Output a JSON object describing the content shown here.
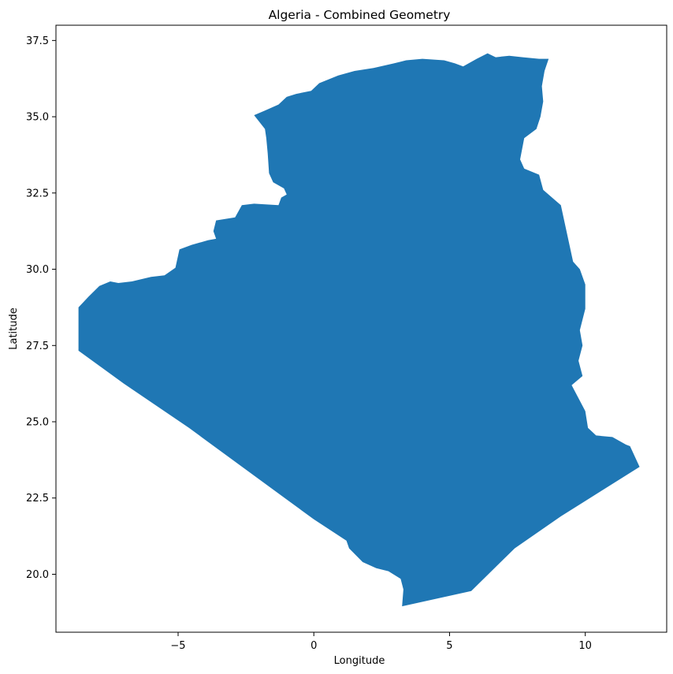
{
  "title": "Algeria - Combined Geometry",
  "chart_data": {
    "type": "map",
    "title": "Algeria - Combined Geometry",
    "xlabel": "Longitude",
    "ylabel": "Latitude",
    "xlim": [
      -9.5,
      13.0
    ],
    "ylim": [
      18.1,
      38.0
    ],
    "x_ticks": [
      {
        "value": -5,
        "label": "−5"
      },
      {
        "value": 0,
        "label": "0"
      },
      {
        "value": 5,
        "label": "5"
      },
      {
        "value": 10,
        "label": "10"
      }
    ],
    "y_ticks": [
      {
        "value": 20.0,
        "label": "20.0"
      },
      {
        "value": 22.5,
        "label": "22.5"
      },
      {
        "value": 25.0,
        "label": "25.0"
      },
      {
        "value": 27.5,
        "label": "27.5"
      },
      {
        "value": 30.0,
        "label": "30.0"
      },
      {
        "value": 32.5,
        "label": "32.5"
      },
      {
        "value": 35.0,
        "label": "35.0"
      },
      {
        "value": 37.5,
        "label": "37.5"
      }
    ],
    "grid": false,
    "fill_color": "#1f77b4",
    "region_name": "Algeria",
    "boundary": [
      [
        -8.67,
        28.75
      ],
      [
        -8.3,
        29.1
      ],
      [
        -7.9,
        29.45
      ],
      [
        -7.5,
        29.6
      ],
      [
        -7.2,
        29.55
      ],
      [
        -6.7,
        29.6
      ],
      [
        -6.0,
        29.75
      ],
      [
        -5.5,
        29.8
      ],
      [
        -5.1,
        30.05
      ],
      [
        -4.95,
        30.65
      ],
      [
        -4.5,
        30.8
      ],
      [
        -3.9,
        30.95
      ],
      [
        -3.6,
        31.0
      ],
      [
        -3.7,
        31.25
      ],
      [
        -3.6,
        31.6
      ],
      [
        -2.9,
        31.7
      ],
      [
        -2.65,
        32.1
      ],
      [
        -2.2,
        32.15
      ],
      [
        -1.3,
        32.1
      ],
      [
        -1.2,
        32.35
      ],
      [
        -1.0,
        32.45
      ],
      [
        -1.1,
        32.65
      ],
      [
        -1.5,
        32.85
      ],
      [
        -1.65,
        33.15
      ],
      [
        -1.7,
        33.8
      ],
      [
        -1.75,
        34.3
      ],
      [
        -1.8,
        34.6
      ],
      [
        -2.2,
        35.05
      ],
      [
        -1.8,
        35.2
      ],
      [
        -1.3,
        35.4
      ],
      [
        -1.0,
        35.65
      ],
      [
        -0.65,
        35.75
      ],
      [
        -0.1,
        35.85
      ],
      [
        0.2,
        36.1
      ],
      [
        0.9,
        36.35
      ],
      [
        1.5,
        36.5
      ],
      [
        2.2,
        36.6
      ],
      [
        2.95,
        36.75
      ],
      [
        3.4,
        36.85
      ],
      [
        4.0,
        36.9
      ],
      [
        4.8,
        36.85
      ],
      [
        5.2,
        36.75
      ],
      [
        5.5,
        36.65
      ],
      [
        6.0,
        36.9
      ],
      [
        6.4,
        37.08
      ],
      [
        6.7,
        36.95
      ],
      [
        7.2,
        37.0
      ],
      [
        7.7,
        36.95
      ],
      [
        8.3,
        36.9
      ],
      [
        8.65,
        36.9
      ],
      [
        8.5,
        36.5
      ],
      [
        8.4,
        36.0
      ],
      [
        8.45,
        35.5
      ],
      [
        8.35,
        35.0
      ],
      [
        8.2,
        34.6
      ],
      [
        7.75,
        34.3
      ],
      [
        7.6,
        33.6
      ],
      [
        7.75,
        33.3
      ],
      [
        8.3,
        33.1
      ],
      [
        8.45,
        32.6
      ],
      [
        9.1,
        32.1
      ],
      [
        9.55,
        30.25
      ],
      [
        9.8,
        30.0
      ],
      [
        10.0,
        29.5
      ],
      [
        10.0,
        28.7
      ],
      [
        9.8,
        28.0
      ],
      [
        9.9,
        27.5
      ],
      [
        9.75,
        27.0
      ],
      [
        9.9,
        26.5
      ],
      [
        9.5,
        26.2
      ],
      [
        10.0,
        25.35
      ],
      [
        10.1,
        24.8
      ],
      [
        10.4,
        24.55
      ],
      [
        11.0,
        24.5
      ],
      [
        11.5,
        24.25
      ],
      [
        11.65,
        24.2
      ],
      [
        12.0,
        23.52
      ],
      [
        9.1,
        21.9
      ],
      [
        7.4,
        20.85
      ],
      [
        5.8,
        19.45
      ],
      [
        3.25,
        18.95
      ],
      [
        3.3,
        19.5
      ],
      [
        3.2,
        19.85
      ],
      [
        2.75,
        20.1
      ],
      [
        2.3,
        20.2
      ],
      [
        1.8,
        20.4
      ],
      [
        1.3,
        20.85
      ],
      [
        1.2,
        21.1
      ],
      [
        0.0,
        21.8
      ],
      [
        -4.6,
        24.8
      ],
      [
        -7.0,
        26.25
      ],
      [
        -8.67,
        27.33
      ]
    ]
  }
}
